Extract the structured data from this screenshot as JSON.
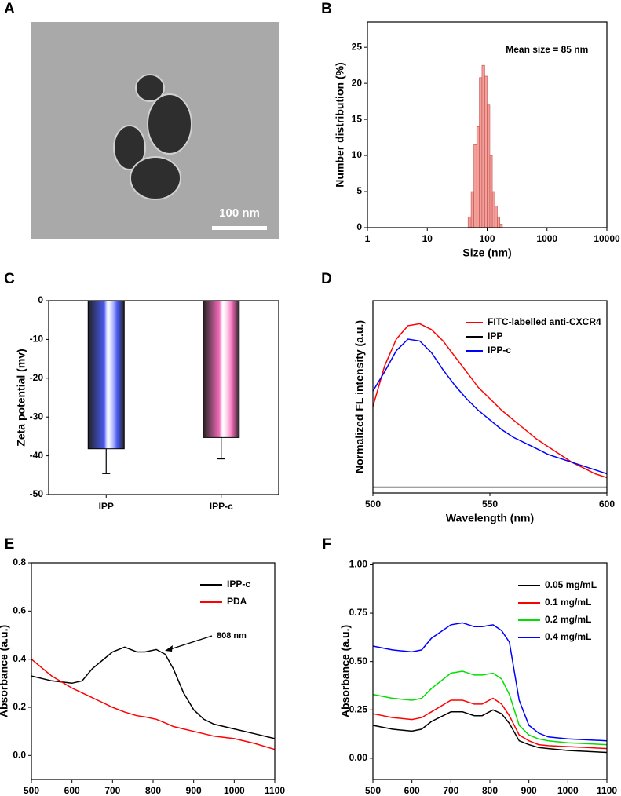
{
  "chart_data": [
    {
      "type": "image",
      "label": "A",
      "scale_bar": "100 nm"
    },
    {
      "type": "histogram",
      "label": "B",
      "annotation": "Mean size = 85 nm",
      "xlabel": "Size (nm)",
      "ylabel": "Number distribution (%)",
      "log_x": true,
      "xlim": [
        1,
        10000
      ],
      "xticks": [
        1,
        10,
        100,
        1000,
        10000
      ],
      "ylim": [
        0,
        28.5
      ],
      "yticks": [
        0,
        5,
        10,
        15,
        20,
        25
      ],
      "color": "#f4a09a",
      "bins": [
        48,
        54,
        60,
        67,
        74,
        82,
        91,
        100,
        111,
        122,
        134,
        148,
        163,
        180
      ],
      "values": [
        1.5,
        5,
        11.5,
        14,
        20.8,
        22.5,
        21,
        17,
        10,
        5,
        3,
        1.5,
        0.5
      ]
    },
    {
      "type": "bar",
      "label": "C",
      "ylabel": "Zeta potential (mv)",
      "categories": [
        "IPP",
        "IPP-c"
      ],
      "values": [
        -38.2,
        -35.3
      ],
      "errors": [
        6.4,
        5.5
      ],
      "colors": [
        "#4b5cf5",
        "#f46cb8"
      ],
      "ylim": [
        -50,
        0
      ],
      "yticks": [
        0,
        -10,
        -20,
        -30,
        -40,
        -50
      ]
    },
    {
      "type": "line",
      "label": "D",
      "xlabel": "Wavelength (nm)",
      "ylabel": "Normalized FL intensity (a.u.)",
      "xlim": [
        500,
        600
      ],
      "xticks": [
        500,
        550,
        600
      ],
      "ylim": [
        0,
        1
      ],
      "legend": "upper right",
      "x": [
        500,
        505,
        510,
        515,
        520,
        525,
        530,
        535,
        540,
        545,
        550,
        555,
        560,
        565,
        570,
        575,
        580,
        585,
        590,
        595,
        600
      ],
      "series": [
        {
          "name": "FITC-labelled anti-CXCR4",
          "color": "#ff0000",
          "values": [
            0.45,
            0.66,
            0.8,
            0.87,
            0.88,
            0.85,
            0.79,
            0.71,
            0.63,
            0.55,
            0.49,
            0.43,
            0.38,
            0.33,
            0.28,
            0.24,
            0.2,
            0.16,
            0.13,
            0.1,
            0.08
          ]
        },
        {
          "name": "IPP",
          "color": "#000000",
          "values": [
            0.03,
            0.03,
            0.03,
            0.03,
            0.03,
            0.03,
            0.03,
            0.03,
            0.03,
            0.03,
            0.03,
            0.03,
            0.03,
            0.03,
            0.03,
            0.03,
            0.03,
            0.03,
            0.03,
            0.03,
            0.03
          ]
        },
        {
          "name": "IPP-c",
          "color": "#0000ff",
          "values": [
            0.53,
            0.63,
            0.74,
            0.8,
            0.79,
            0.73,
            0.64,
            0.56,
            0.49,
            0.43,
            0.38,
            0.33,
            0.29,
            0.26,
            0.23,
            0.2,
            0.18,
            0.16,
            0.14,
            0.12,
            0.1
          ]
        }
      ]
    },
    {
      "type": "line",
      "label": "E",
      "xlabel": "Wavelength (nm)",
      "ylabel": "Absorbance (a.u.)",
      "annotation": "808 nm",
      "legend": "upper right",
      "xlim": [
        500,
        1100
      ],
      "xticks": [
        500,
        600,
        700,
        800,
        900,
        1000,
        1100
      ],
      "ylim": [
        -0.1,
        0.8
      ],
      "yticks": [
        {
          "value": 0,
          "label": "0.0"
        },
        0.2,
        0.4,
        0.6,
        0.8
      ],
      "x": [
        500,
        550,
        600,
        625,
        650,
        700,
        730,
        760,
        780,
        808,
        830,
        850,
        875,
        900,
        925,
        950,
        1000,
        1050,
        1100
      ],
      "series": [
        {
          "name": "IPP-c",
          "color": "#000000",
          "values": [
            0.33,
            0.31,
            0.3,
            0.31,
            0.36,
            0.43,
            0.45,
            0.43,
            0.43,
            0.44,
            0.42,
            0.36,
            0.26,
            0.19,
            0.15,
            0.13,
            0.11,
            0.09,
            0.07
          ]
        },
        {
          "name": "PDA",
          "color": "#ff0000",
          "values": [
            0.4,
            0.33,
            0.28,
            0.26,
            0.24,
            0.2,
            0.18,
            0.165,
            0.16,
            0.15,
            0.135,
            0.12,
            0.11,
            0.1,
            0.09,
            0.08,
            0.07,
            0.05,
            0.025
          ]
        }
      ]
    },
    {
      "type": "line",
      "label": "F",
      "xlabel": "Wavelength (nm)",
      "ylabel": "Absorbance (a.u.)",
      "legend": "upper right",
      "xlim": [
        500,
        1100
      ],
      "xticks": [
        500,
        600,
        700,
        800,
        900,
        1000,
        1100
      ],
      "ylim": [
        -0.11,
        1.01
      ],
      "yticks": [
        {
          "value": 0,
          "label": "0.00"
        },
        0.25,
        {
          "value": 0.5,
          "label": "0.50"
        },
        0.75,
        {
          "value": 1,
          "label": "1.00"
        }
      ],
      "x": [
        500,
        550,
        600,
        625,
        650,
        700,
        730,
        760,
        780,
        808,
        830,
        850,
        875,
        900,
        925,
        950,
        1000,
        1050,
        1100
      ],
      "series": [
        {
          "name": "0.05 mg/mL",
          "color": "#000000",
          "values": [
            0.17,
            0.15,
            0.14,
            0.15,
            0.19,
            0.24,
            0.24,
            0.22,
            0.22,
            0.25,
            0.23,
            0.18,
            0.09,
            0.07,
            0.055,
            0.05,
            0.04,
            0.035,
            0.03
          ]
        },
        {
          "name": "0.1 mg/mL",
          "color": "#ff0000",
          "values": [
            0.23,
            0.21,
            0.2,
            0.21,
            0.24,
            0.3,
            0.3,
            0.28,
            0.28,
            0.31,
            0.28,
            0.22,
            0.12,
            0.09,
            0.07,
            0.065,
            0.06,
            0.055,
            0.05
          ]
        },
        {
          "name": "0.2 mg/mL",
          "color": "#00e000",
          "values": [
            0.33,
            0.31,
            0.3,
            0.31,
            0.36,
            0.44,
            0.45,
            0.43,
            0.43,
            0.44,
            0.41,
            0.33,
            0.17,
            0.12,
            0.1,
            0.09,
            0.08,
            0.075,
            0.07
          ]
        },
        {
          "name": "0.4 mg/mL",
          "color": "#0000ff",
          "values": [
            0.58,
            0.56,
            0.55,
            0.56,
            0.62,
            0.69,
            0.7,
            0.68,
            0.68,
            0.69,
            0.66,
            0.6,
            0.3,
            0.17,
            0.13,
            0.11,
            0.1,
            0.095,
            0.09
          ]
        }
      ]
    }
  ]
}
